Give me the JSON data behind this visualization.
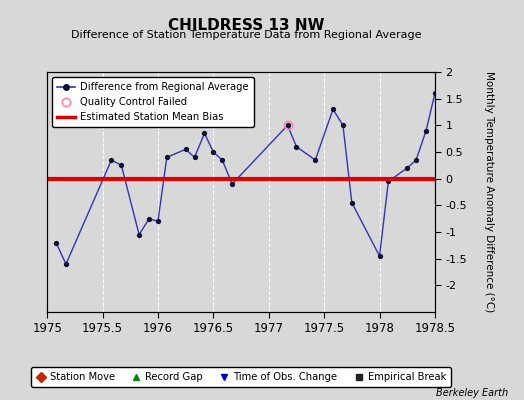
{
  "title": "CHILDRESS 13 NW",
  "subtitle": "Difference of Station Temperature Data from Regional Average",
  "ylabel_right": "Monthly Temperature Anomaly Difference (°C)",
  "watermark": "Berkeley Earth",
  "xlim": [
    1975,
    1978.5
  ],
  "ylim": [
    -2.5,
    2.0
  ],
  "yticks_right": [
    -2,
    -1.5,
    -1,
    -0.5,
    0,
    0.5,
    1,
    1.5,
    2
  ],
  "ytick_labels_right": [
    "-2",
    "-1.5",
    "-1",
    "-0.5",
    "0",
    "0.5",
    "1",
    "1.5",
    "2"
  ],
  "xticks": [
    1975,
    1975.5,
    1976,
    1976.5,
    1977,
    1977.5,
    1978,
    1978.5
  ],
  "xtick_labels": [
    "1975",
    "1975.5",
    "1976",
    "1976.5",
    "1977",
    "1977.5",
    "1978",
    "1978.5"
  ],
  "bias_line": 0.0,
  "bias_color": "#dd0000",
  "line_color": "#3333bb",
  "marker_color": "#111133",
  "bg_color": "#d8d8d8",
  "plot_bg_color": "#d8d8d8",
  "x_data": [
    1975.08,
    1975.17,
    1975.58,
    1975.67,
    1975.83,
    1975.92,
    1976.0,
    1976.08,
    1976.25,
    1976.33,
    1976.42,
    1976.5,
    1976.58,
    1976.67,
    1977.17,
    1977.25,
    1977.42,
    1977.58,
    1977.67,
    1977.75,
    1978.0,
    1978.08,
    1978.25,
    1978.33,
    1978.42,
    1978.5
  ],
  "y_data": [
    -1.2,
    -1.6,
    0.35,
    0.25,
    -1.05,
    -0.75,
    -0.8,
    0.4,
    0.55,
    0.4,
    0.85,
    0.5,
    0.35,
    -0.1,
    1.0,
    0.6,
    0.35,
    1.3,
    1.0,
    -0.45,
    -1.45,
    -0.05,
    0.2,
    0.35,
    0.9,
    1.6
  ],
  "qc_failed_x": [
    1977.17
  ],
  "qc_failed_y": [
    1.0
  ],
  "bottom_legend_items": [
    {
      "label": "Station Move",
      "color": "#cc2200",
      "marker": "D",
      "mfc": "#cc2200"
    },
    {
      "label": "Record Gap",
      "color": "#008800",
      "marker": "^",
      "mfc": "#008800"
    },
    {
      "label": "Time of Obs. Change",
      "color": "#0000cc",
      "marker": "v",
      "mfc": "#0000cc"
    },
    {
      "label": "Empirical Break",
      "color": "#222222",
      "marker": "s",
      "mfc": "#222222"
    }
  ]
}
